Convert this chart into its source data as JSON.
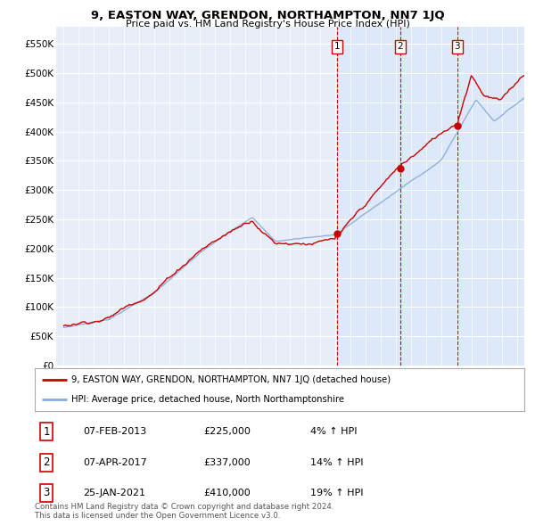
{
  "title": "9, EASTON WAY, GRENDON, NORTHAMPTON, NN7 1JQ",
  "subtitle": "Price paid vs. HM Land Registry's House Price Index (HPI)",
  "ylabel_ticks": [
    "£0",
    "£50K",
    "£100K",
    "£150K",
    "£200K",
    "£250K",
    "£300K",
    "£350K",
    "£400K",
    "£450K",
    "£500K",
    "£550K"
  ],
  "ytick_values": [
    0,
    50000,
    100000,
    150000,
    200000,
    250000,
    300000,
    350000,
    400000,
    450000,
    500000,
    550000
  ],
  "ylim": [
    0,
    580000
  ],
  "sale_dates_num": [
    2013.08,
    2017.27,
    2021.06
  ],
  "sale_prices": [
    225000,
    337000,
    410000
  ],
  "sale_labels": [
    "1",
    "2",
    "3"
  ],
  "red_line_color": "#cc0000",
  "blue_line_color": "#88aadd",
  "shade_color": "#dce8f8",
  "vline_color": "#cc0000",
  "legend_line1": "9, EASTON WAY, GRENDON, NORTHAMPTON, NN7 1JQ (detached house)",
  "legend_line2": "HPI: Average price, detached house, North Northamptonshire",
  "table_data": [
    [
      "1",
      "07-FEB-2013",
      "£225,000",
      "4% ↑ HPI"
    ],
    [
      "2",
      "07-APR-2017",
      "£337,000",
      "14% ↑ HPI"
    ],
    [
      "3",
      "25-JAN-2021",
      "£410,000",
      "19% ↑ HPI"
    ]
  ],
  "footnote": "Contains HM Land Registry data © Crown copyright and database right 2024.\nThis data is licensed under the Open Government Licence v3.0.",
  "background_color": "#ffffff",
  "plot_bg_color": "#e8eef8"
}
